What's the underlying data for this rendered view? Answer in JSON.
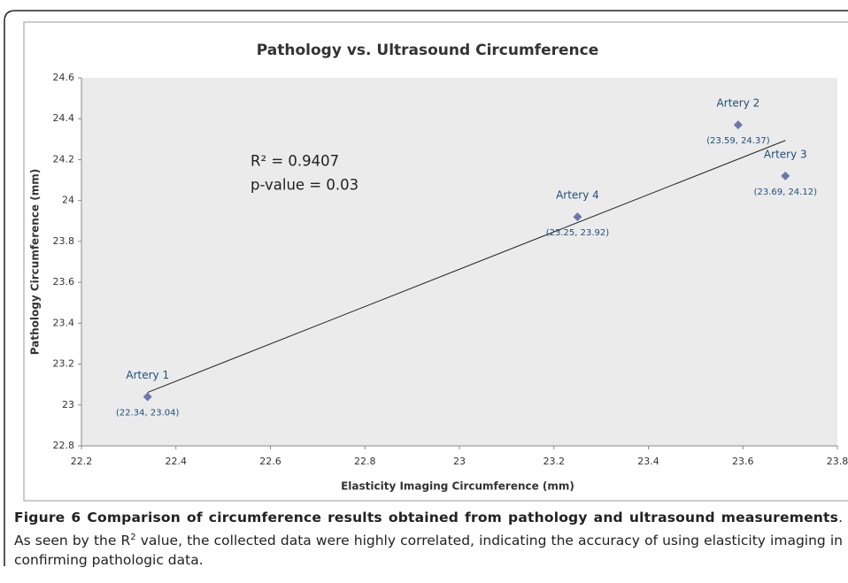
{
  "chart_data": {
    "type": "scatter",
    "title": "Pathology vs. Ultrasound Circumference",
    "xlabel": "Elasticity Imaging Circumference (mm)",
    "ylabel": "Pathology Circumference (mm)",
    "annotations": [
      "R² = 0.9407",
      "p-value = 0.03"
    ],
    "point_names": [
      "Artery 1",
      "Artery 4",
      "Artery 2",
      "Artery 3"
    ],
    "x": [
      22.34,
      23.25,
      23.59,
      23.69
    ],
    "values": [
      23.04,
      23.92,
      24.37,
      24.12
    ],
    "value_labels": [
      "(22.34, 23.04)",
      "(23.25, 23.92)",
      "(23.59, 24.37)",
      "(23.69, 24.12)"
    ],
    "color": "#6b78ad",
    "label_color": "#1f4e79",
    "trendline": "linear",
    "grid": false,
    "xlim": [
      22.2,
      23.8
    ],
    "xticks": [
      22.2,
      22.4,
      22.6,
      22.8,
      23,
      23.2,
      23.4,
      23.6,
      23.8
    ],
    "ylim": [
      22.8,
      24.6
    ],
    "yticks": [
      22.8,
      23,
      23.2,
      23.4,
      23.6,
      23.8,
      24,
      24.2,
      24.4,
      24.6
    ]
  },
  "caption": {
    "title": "Figure 6 Comparison of circumference results obtained from pathology and ultrasound measurements",
    "text": [
      ". As seen by the R",
      "2",
      " value, the collected data were highly correlated, indicating the accuracy of using elasticity imaging in confirming pathologic data."
    ]
  }
}
